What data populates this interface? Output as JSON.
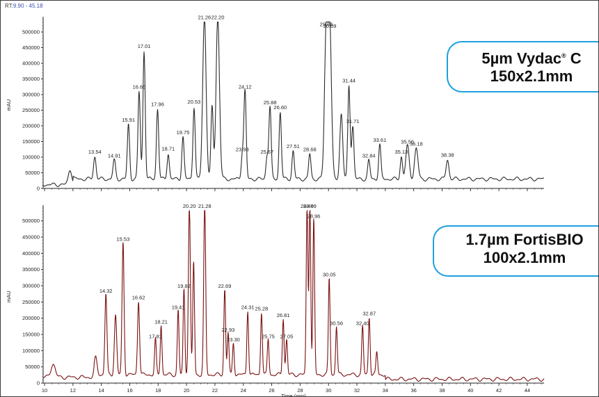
{
  "rt_label": {
    "prefix": "RT:",
    "range": "9.90 - 45.18"
  },
  "ylabel": "mAU",
  "xlabel": "Time (min)",
  "callouts": {
    "top_line1_a": "5µm Vydac",
    "top_line1_sup": "®",
    "top_line1_b": " C",
    "top_line2": "150x2.1mm",
    "bottom_line1": "1.7µm FortisBIO",
    "bottom_line2": "100x2.1mm"
  },
  "colors": {
    "top_trace": "#2b2b2b",
    "bottom_trace": "#7a1010",
    "callout_border": "#1ea0df",
    "marker": "#2e9a3a"
  },
  "chart_data": [
    {
      "type": "line",
      "title": "",
      "xlabel": "",
      "ylabel": "mAU",
      "xlim": [
        9.9,
        45.18
      ],
      "ylim": [
        0,
        540000
      ],
      "yticks": [
        0,
        50000,
        100000,
        150000,
        200000,
        250000,
        300000,
        350000,
        400000,
        450000,
        500000
      ],
      "baseline": 30000,
      "peaks": [
        {
          "rt": 11.8,
          "y": 50000,
          "w": 0.12
        },
        {
          "rt": 13.54,
          "y": 72000,
          "w": 0.09,
          "label": "13.54"
        },
        {
          "rt": 14.91,
          "y": 60000,
          "w": 0.09,
          "label": "14.91"
        },
        {
          "rt": 15.91,
          "y": 175000,
          "w": 0.08,
          "label": "15.91"
        },
        {
          "rt": 16.66,
          "y": 280000,
          "w": 0.08,
          "label": "16.66"
        },
        {
          "rt": 17.01,
          "y": 410000,
          "w": 0.08,
          "label": "17.01"
        },
        {
          "rt": 17.96,
          "y": 225000,
          "w": 0.08,
          "label": "17.96"
        },
        {
          "rt": 18.71,
          "y": 82000,
          "w": 0.08,
          "label": "18.71"
        },
        {
          "rt": 19.75,
          "y": 135000,
          "w": 0.08,
          "label": "19.75"
        },
        {
          "rt": 20.53,
          "y": 232000,
          "w": 0.08,
          "label": "20.53"
        },
        {
          "rt": 21.26,
          "y": 520000,
          "w": 0.12,
          "label": "21.26"
        },
        {
          "rt": 21.8,
          "y": 230000,
          "w": 0.08
        },
        {
          "rt": 22.2,
          "y": 520000,
          "w": 0.12,
          "label": "22.20"
        },
        {
          "rt": 23.93,
          "y": 80000,
          "w": 0.08,
          "label": "23.93"
        },
        {
          "rt": 24.12,
          "y": 280000,
          "w": 0.08,
          "label": "24.12"
        },
        {
          "rt": 25.67,
          "y": 72000,
          "w": 0.08,
          "label": "25.67"
        },
        {
          "rt": 25.88,
          "y": 230000,
          "w": 0.08,
          "label": "25.88"
        },
        {
          "rt": 26.6,
          "y": 215000,
          "w": 0.08,
          "label": "26.60"
        },
        {
          "rt": 27.51,
          "y": 90000,
          "w": 0.08,
          "label": "27.51"
        },
        {
          "rt": 28.68,
          "y": 80000,
          "w": 0.08,
          "label": "28.68"
        },
        {
          "rt": 29.84,
          "y": 480000,
          "w": 0.12,
          "label": "29.84"
        },
        {
          "rt": 30.09,
          "y": 475000,
          "w": 0.12,
          "label": "30.09"
        },
        {
          "rt": 30.9,
          "y": 210000,
          "w": 0.1
        },
        {
          "rt": 31.44,
          "y": 300000,
          "w": 0.08,
          "label": "31.44"
        },
        {
          "rt": 31.71,
          "y": 170000,
          "w": 0.08,
          "label": "31.71"
        },
        {
          "rt": 32.84,
          "y": 60000,
          "w": 0.08,
          "label": "32.84"
        },
        {
          "rt": 33.61,
          "y": 110000,
          "w": 0.08,
          "label": "33.61"
        },
        {
          "rt": 35.13,
          "y": 72000,
          "w": 0.08,
          "label": "35.13"
        },
        {
          "rt": 35.56,
          "y": 105000,
          "w": 0.12,
          "label": "35.56"
        },
        {
          "rt": 36.18,
          "y": 98000,
          "w": 0.12,
          "label": "36.18"
        },
        {
          "rt": 38.38,
          "y": 62000,
          "w": 0.1,
          "label": "38.38"
        }
      ]
    },
    {
      "type": "line",
      "title": "",
      "xlabel": "Time (min)",
      "ylabel": "mAU",
      "xlim": [
        9.9,
        45.18
      ],
      "ylim": [
        0,
        540000
      ],
      "yticks": [
        0,
        50000,
        100000,
        150000,
        200000,
        250000,
        300000,
        350000,
        400000,
        450000,
        500000
      ],
      "xticks": [
        10,
        12,
        14,
        16,
        18,
        20,
        22,
        24,
        26,
        28,
        30,
        32,
        34,
        36,
        38,
        40,
        42,
        44
      ],
      "baseline": 20000,
      "peaks": [
        {
          "rt": 10.6,
          "y": 42000,
          "w": 0.15
        },
        {
          "rt": 13.6,
          "y": 52000,
          "w": 0.1
        },
        {
          "rt": 14.32,
          "y": 250000,
          "w": 0.07,
          "label": "14.32"
        },
        {
          "rt": 15.0,
          "y": 185000,
          "w": 0.08
        },
        {
          "rt": 15.53,
          "y": 410000,
          "w": 0.07,
          "label": "15.53"
        },
        {
          "rt": 16.62,
          "y": 230000,
          "w": 0.07,
          "label": "16.62"
        },
        {
          "rt": 17.81,
          "y": 110000,
          "w": 0.06,
          "label": "17.81"
        },
        {
          "rt": 18.21,
          "y": 155000,
          "w": 0.06,
          "label": "18.21"
        },
        {
          "rt": 19.41,
          "y": 200000,
          "w": 0.06,
          "label": "19.41"
        },
        {
          "rt": 19.82,
          "y": 265000,
          "w": 0.06,
          "label": "19.82"
        },
        {
          "rt": 20.2,
          "y": 520000,
          "w": 0.07,
          "label": "20.20"
        },
        {
          "rt": 20.5,
          "y": 350000,
          "w": 0.06
        },
        {
          "rt": 21.28,
          "y": 520000,
          "w": 0.07,
          "label": "21.28"
        },
        {
          "rt": 22.69,
          "y": 265000,
          "w": 0.06,
          "label": "22.69"
        },
        {
          "rt": 22.93,
          "y": 130000,
          "w": 0.06,
          "label": "22.93"
        },
        {
          "rt": 23.3,
          "y": 100000,
          "w": 0.06,
          "label": "23.30"
        },
        {
          "rt": 24.31,
          "y": 200000,
          "w": 0.06,
          "label": "24.31"
        },
        {
          "rt": 25.28,
          "y": 195000,
          "w": 0.06,
          "label": "25.28"
        },
        {
          "rt": 25.75,
          "y": 110000,
          "w": 0.06,
          "label": "25.75"
        },
        {
          "rt": 26.81,
          "y": 175000,
          "w": 0.06,
          "label": "26.81"
        },
        {
          "rt": 27.05,
          "y": 110000,
          "w": 0.06,
          "label": "27.05"
        },
        {
          "rt": 28.49,
          "y": 520000,
          "w": 0.06,
          "label": "28.49"
        },
        {
          "rt": 28.69,
          "y": 520000,
          "w": 0.06,
          "label": "28.69"
        },
        {
          "rt": 28.96,
          "y": 480000,
          "w": 0.06,
          "label": "28.96"
        },
        {
          "rt": 30.05,
          "y": 300000,
          "w": 0.06,
          "label": "30.05"
        },
        {
          "rt": 30.56,
          "y": 150000,
          "w": 0.06,
          "label": "30.56"
        },
        {
          "rt": 32.4,
          "y": 150000,
          "w": 0.06,
          "label": "32.40"
        },
        {
          "rt": 32.87,
          "y": 180000,
          "w": 0.06,
          "label": "32.87"
        },
        {
          "rt": 33.4,
          "y": 70000,
          "w": 0.06
        }
      ]
    }
  ]
}
